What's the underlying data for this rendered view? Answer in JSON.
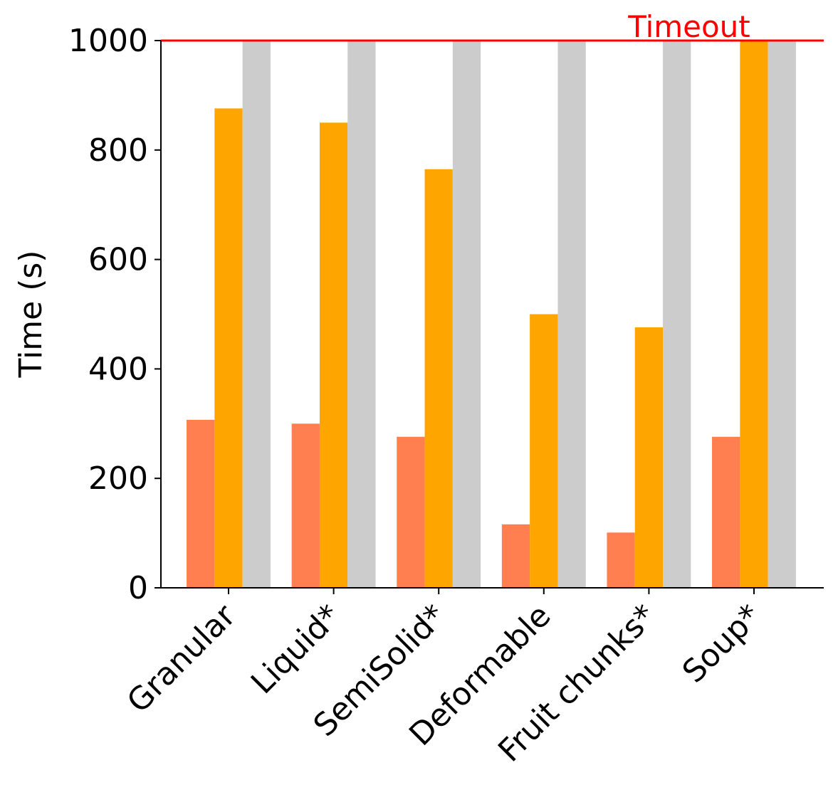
{
  "chart_data": {
    "type": "bar",
    "title": "",
    "xlabel": "",
    "ylabel": "Time (s)",
    "categories": [
      "Granular",
      "Liquid*",
      "SemiSolid*",
      "Deformable",
      "Fruit chunks*",
      "Soup*"
    ],
    "series": [
      {
        "color": "#ff7f50",
        "values": [
          307,
          300,
          276,
          116,
          101,
          276
        ]
      },
      {
        "color": "#ffa500",
        "values": [
          876,
          850,
          765,
          500,
          476,
          1000
        ]
      },
      {
        "color": "#cccccc",
        "values": [
          1000,
          1000,
          1000,
          1000,
          1000,
          1000
        ]
      }
    ],
    "ylim": [
      0,
      1000
    ],
    "yticks": [
      0,
      200,
      400,
      600,
      800,
      1000
    ],
    "grid": false,
    "legend": "none",
    "reference_line": {
      "value": 1000,
      "label": "Timeout",
      "color": "#ff0000"
    }
  }
}
